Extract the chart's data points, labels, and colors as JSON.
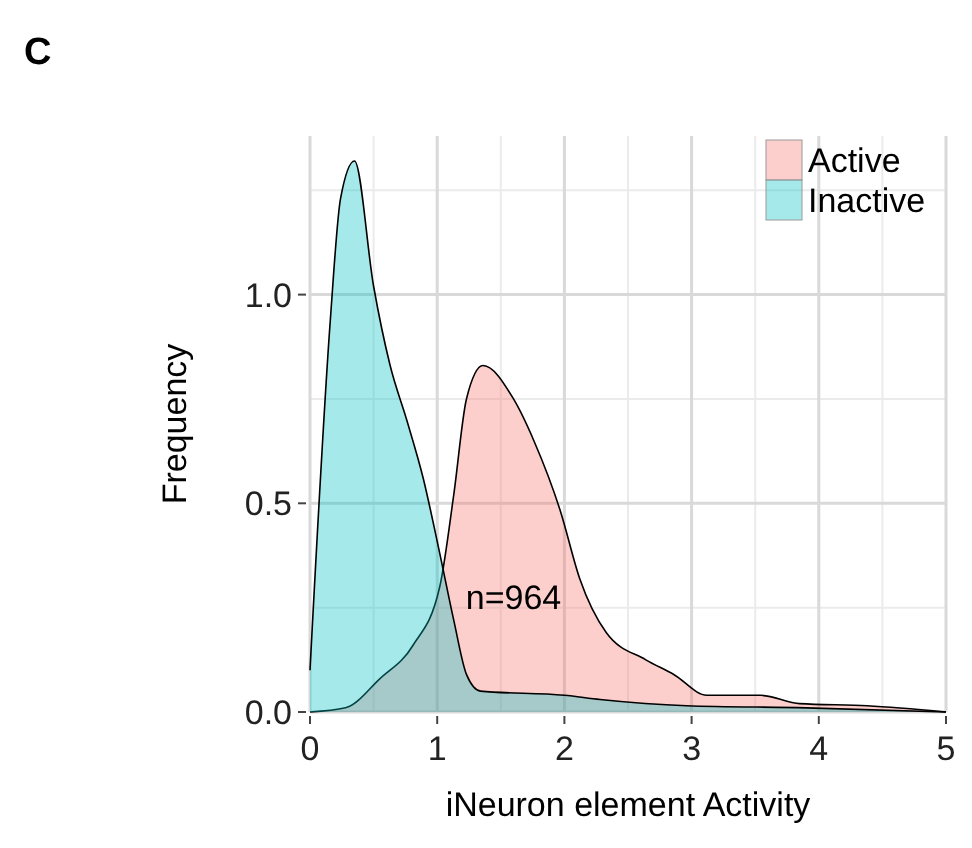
{
  "chart_data": {
    "type": "area",
    "title": "C",
    "xlabel": "iNeuron element Activity",
    "ylabel": "Frequency",
    "xlim": [
      0,
      5
    ],
    "ylim": [
      0,
      1.38
    ],
    "xticks": [
      0,
      1,
      2,
      3,
      4,
      5
    ],
    "yticks": [
      {
        "value": 0,
        "label": "0.0"
      },
      {
        "value": 0.5,
        "label": "0.5"
      },
      {
        "value": 1,
        "label": "1.0"
      }
    ],
    "grid": true,
    "legend": "top right",
    "annotations": [
      "n=964"
    ],
    "series": [
      {
        "name": "Active",
        "color": "#f8766d",
        "x": [
          0,
          0.28,
          0.55,
          0.81,
          1.02,
          1.13,
          1.23,
          1.36,
          1.6,
          1.76,
          1.97,
          2.12,
          2.33,
          2.64,
          2.86,
          3.12,
          3.54,
          3.85,
          4.38,
          5
        ],
        "values": [
          0,
          0.01,
          0.08,
          0.16,
          0.3,
          0.52,
          0.75,
          0.83,
          0.75,
          0.65,
          0.48,
          0.32,
          0.19,
          0.125,
          0.09,
          0.04,
          0.04,
          0.02,
          0.015,
          0
        ]
      },
      {
        "name": "Inactive",
        "color": "#00bfc4",
        "x": [
          0,
          0.16,
          0.24,
          0.35,
          0.5,
          0.63,
          0.76,
          0.89,
          1.02,
          1.13,
          1.23,
          1.34,
          2,
          2.28,
          2.96,
          3.9,
          5
        ],
        "values": [
          0.1,
          0.94,
          1.23,
          1.32,
          1.02,
          0.83,
          0.7,
          0.56,
          0.38,
          0.22,
          0.09,
          0.05,
          0.04,
          0.03,
          0.015,
          0.01,
          0
        ]
      }
    ]
  }
}
